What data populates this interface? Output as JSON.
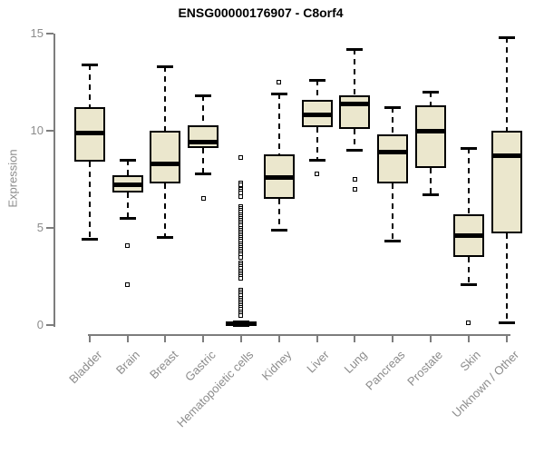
{
  "colors": {
    "box_fill": "#EBE7CD",
    "box_border": "#000000",
    "axis_color": "#7d7d7d",
    "tick_label_color": "#8c8c8c",
    "title_color": "#000000",
    "background": "#ffffff"
  },
  "chart_data": {
    "type": "boxplot",
    "title": "ENSG00000176907 - C8orf4",
    "xlabel": "",
    "ylabel": "Expression",
    "ylim": [
      0,
      15
    ],
    "yticks": [
      0,
      5,
      10,
      15
    ],
    "grid": false,
    "legend": null,
    "categories": [
      "Bladder",
      "Brain",
      "Breast",
      "Gastric",
      "Hematopoietic cells",
      "Kidney",
      "Liver",
      "Lung",
      "Pancreas",
      "Prostate",
      "Skin",
      "Unknown / Other"
    ],
    "boxes": [
      {
        "name": "Bladder",
        "whisker_low": 4.4,
        "q1": 8.4,
        "median": 9.9,
        "q3": 11.2,
        "whisker_high": 13.4,
        "outliers": []
      },
      {
        "name": "Brain",
        "whisker_low": 5.5,
        "q1": 6.8,
        "median": 7.2,
        "q3": 7.7,
        "whisker_high": 8.5,
        "outliers": [
          4.1,
          2.1
        ]
      },
      {
        "name": "Breast",
        "whisker_low": 4.5,
        "q1": 7.3,
        "median": 8.3,
        "q3": 10.0,
        "whisker_high": 13.3,
        "outliers": []
      },
      {
        "name": "Gastric",
        "whisker_low": 7.8,
        "q1": 9.1,
        "median": 9.4,
        "q3": 10.3,
        "whisker_high": 11.8,
        "outliers": [
          6.5
        ]
      },
      {
        "name": "Hematopoietic cells",
        "whisker_low": 0,
        "q1": 0,
        "median": 0.08,
        "q3": 0.15,
        "whisker_high": 0.15,
        "outliers": [
          8.6,
          7.3,
          7.2,
          7.0,
          6.9,
          6.8,
          6.6,
          6.1,
          6.0,
          5.9,
          5.8,
          5.7,
          5.6,
          5.5,
          5.4,
          5.3,
          5.2,
          5.1,
          5.0,
          4.9,
          4.8,
          4.7,
          4.6,
          4.5,
          4.4,
          4.3,
          4.2,
          4.1,
          4.0,
          3.9,
          3.8,
          3.7,
          3.6,
          3.5,
          3.2,
          3.1,
          3.0,
          2.9,
          2.8,
          2.7,
          2.6,
          2.5,
          2.4,
          1.8,
          1.7,
          1.6,
          1.5,
          1.4,
          1.3,
          1.2,
          1.1,
          1.0,
          0.9,
          0.8,
          0.7,
          0.6,
          0.5
        ]
      },
      {
        "name": "Kidney",
        "whisker_low": 4.9,
        "q1": 6.5,
        "median": 7.6,
        "q3": 8.8,
        "whisker_high": 11.9,
        "outliers": [
          12.5
        ]
      },
      {
        "name": "Liver",
        "whisker_low": 8.5,
        "q1": 10.2,
        "median": 10.8,
        "q3": 11.6,
        "whisker_high": 12.6,
        "outliers": [
          7.8
        ]
      },
      {
        "name": "Lung",
        "whisker_low": 9.0,
        "q1": 10.1,
        "median": 11.4,
        "q3": 11.8,
        "whisker_high": 14.2,
        "outliers": [
          7.5,
          7.0
        ]
      },
      {
        "name": "Pancreas",
        "whisker_low": 4.3,
        "q1": 7.3,
        "median": 8.9,
        "q3": 9.8,
        "whisker_high": 11.2,
        "outliers": []
      },
      {
        "name": "Prostate",
        "whisker_low": 6.7,
        "q1": 8.1,
        "median": 10.0,
        "q3": 11.3,
        "whisker_high": 12.0,
        "outliers": []
      },
      {
        "name": "Skin",
        "whisker_low": 2.1,
        "q1": 3.5,
        "median": 4.6,
        "q3": 5.7,
        "whisker_high": 9.1,
        "outliers": [
          0.1
        ]
      },
      {
        "name": "Unknown / Other",
        "whisker_low": 0.1,
        "q1": 4.7,
        "median": 8.7,
        "q3": 10.0,
        "whisker_high": 14.8,
        "outliers": []
      }
    ]
  }
}
